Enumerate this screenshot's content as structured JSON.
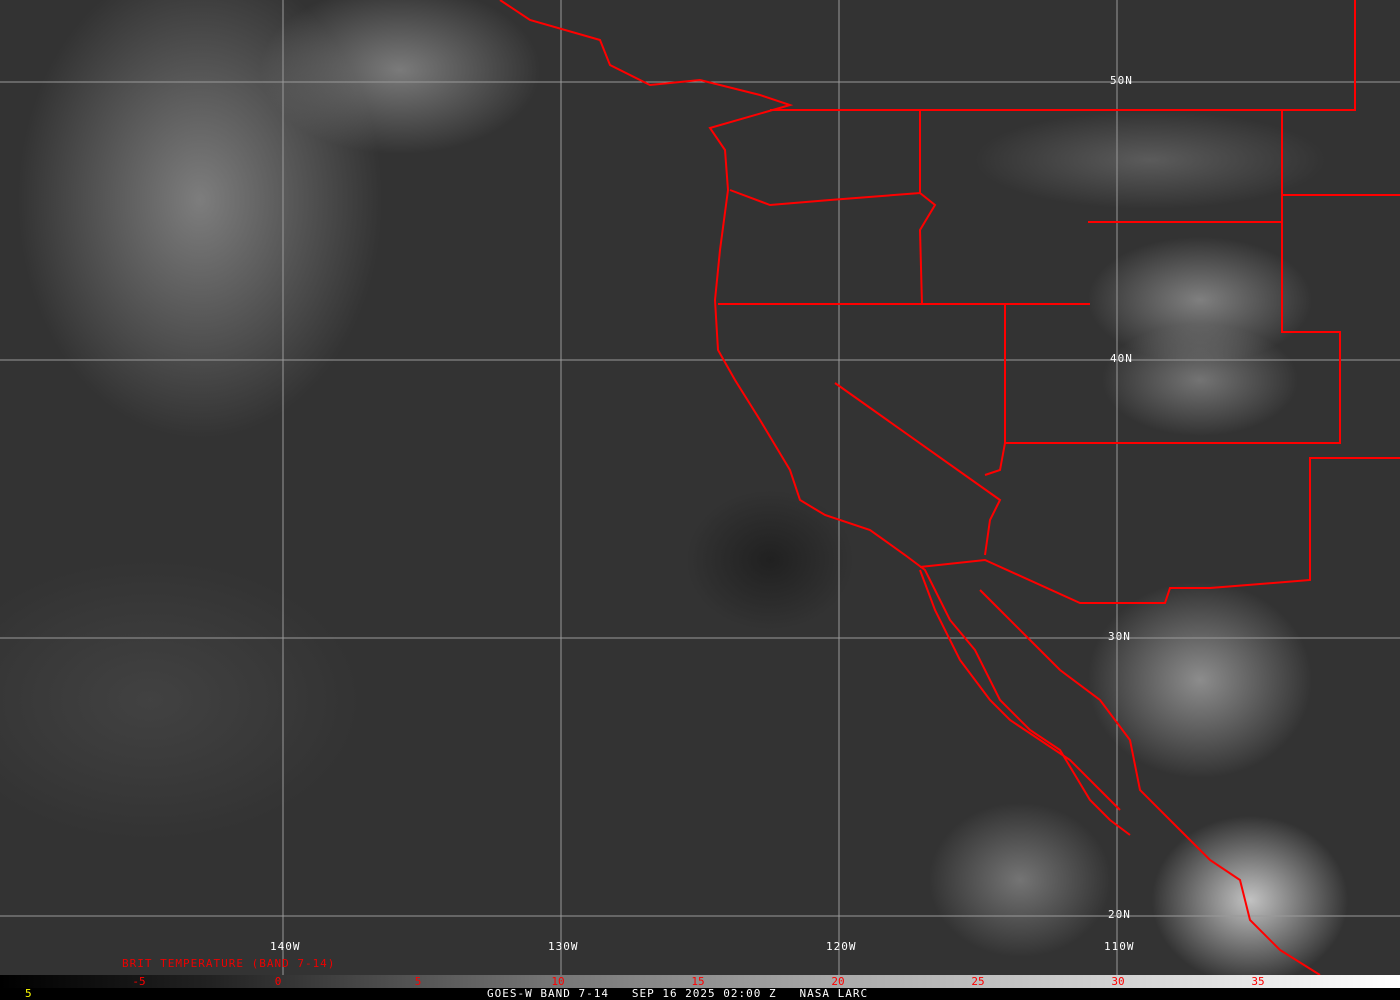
{
  "map": {
    "lat_labels": [
      "50N",
      "40N",
      "30N",
      "20N"
    ],
    "lon_labels": [
      "140W",
      "130W",
      "120W",
      "110W"
    ],
    "boundary_color": "#ff0000",
    "grid_color": "#9a9a9a"
  },
  "legend": {
    "title": "BRIT TEMPERATURE (BAND 7-14)",
    "ticks": [
      "-5",
      "0",
      "5",
      "10",
      "15",
      "20",
      "25",
      "30",
      "35"
    ]
  },
  "footer": {
    "left_value": "5",
    "caption": "GOES-W BAND 7-14   SEP 16 2025 02:00 Z   NASA LARC"
  }
}
